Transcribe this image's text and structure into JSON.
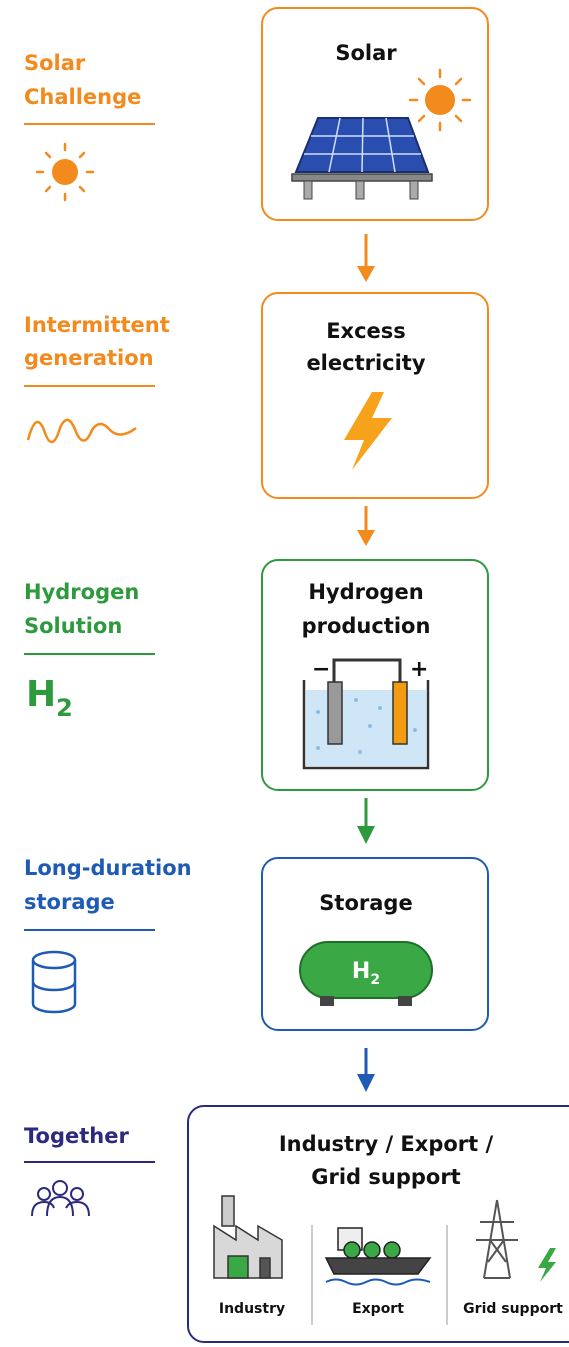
{
  "stages": [
    {
      "label": [
        "Solar",
        "Challenge"
      ],
      "box_title": [
        "Solar"
      ]
    },
    {
      "label": [
        "Intermittent",
        "generation"
      ],
      "box_title": [
        "Excess",
        "electricity"
      ]
    },
    {
      "label": [
        "Hydrogen",
        "Solution"
      ],
      "box_title": [
        "Hydrogen",
        "production"
      ]
    },
    {
      "label": [
        "Long-duration",
        "storage"
      ],
      "box_title": [
        "Storage"
      ]
    },
    {
      "label": [
        "Together"
      ],
      "box_title": [
        "Industry / Export /",
        "Grid support"
      ]
    }
  ],
  "h2_icon": {
    "symbol": "H",
    "subscript": "2"
  },
  "electrolyzer": {
    "minus": "−",
    "plus": "+"
  },
  "tank": {
    "symbol": "H",
    "subscript": "2"
  },
  "outputs": [
    "Industry",
    "Export",
    "Grid support"
  ]
}
